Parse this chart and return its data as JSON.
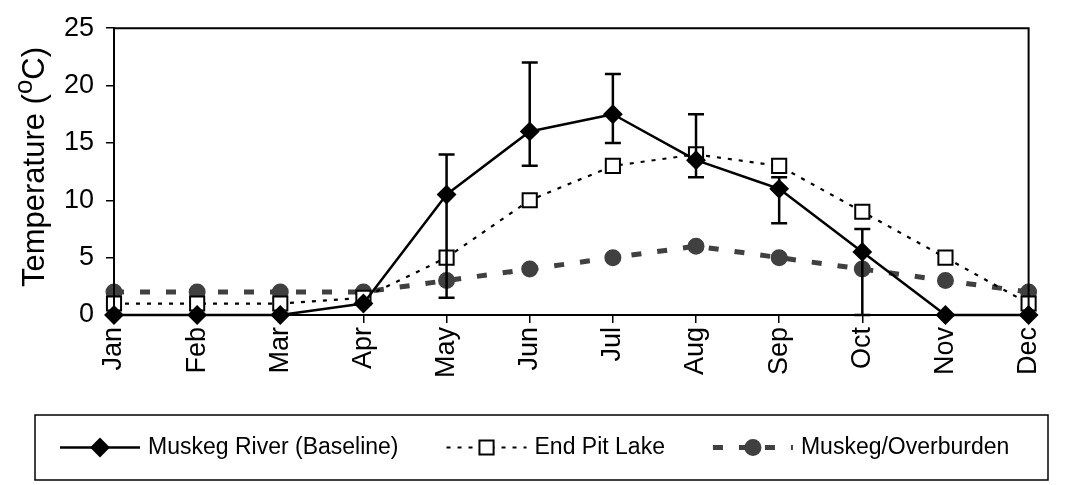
{
  "chart_data": {
    "type": "line",
    "ylabel": "Temperature ($^{o}$C)",
    "categories": [
      "Jan",
      "Feb",
      "Mar",
      "Apr",
      "May",
      "Jun",
      "Jul",
      "Aug",
      "Sep",
      "Oct",
      "Nov",
      "Dec"
    ],
    "ylim": [
      0,
      25
    ],
    "yticks": [
      0,
      5,
      10,
      15,
      20,
      25
    ],
    "legend": "bottom",
    "series": [
      {
        "name": "Muskeg River (Baseline)",
        "color": "#000000",
        "marker": "diamond",
        "line_style": "solid",
        "values": [
          0,
          0,
          0,
          1,
          10.5,
          16,
          17.5,
          13.5,
          11,
          5.5,
          0,
          0
        ],
        "errors": [
          null,
          null,
          null,
          null,
          [
            1.5,
            14
          ],
          [
            13,
            22
          ],
          [
            15,
            21
          ],
          [
            12,
            17.5
          ],
          [
            8,
            12
          ],
          [
            0,
            7.5
          ],
          null,
          null
        ]
      },
      {
        "name": "End Pit Lake",
        "color": "#000000",
        "marker": "square",
        "line_style": "dotted",
        "values": [
          1,
          1,
          1,
          1.5,
          5,
          10,
          13,
          14,
          13,
          9,
          5,
          1
        ]
      },
      {
        "name": "Muskeg/Overburden",
        "color": "#404040",
        "marker": "circle",
        "line_style": "dashed",
        "values": [
          2,
          2,
          2,
          2,
          3,
          4,
          5,
          6,
          5,
          4,
          3,
          2
        ]
      }
    ]
  }
}
